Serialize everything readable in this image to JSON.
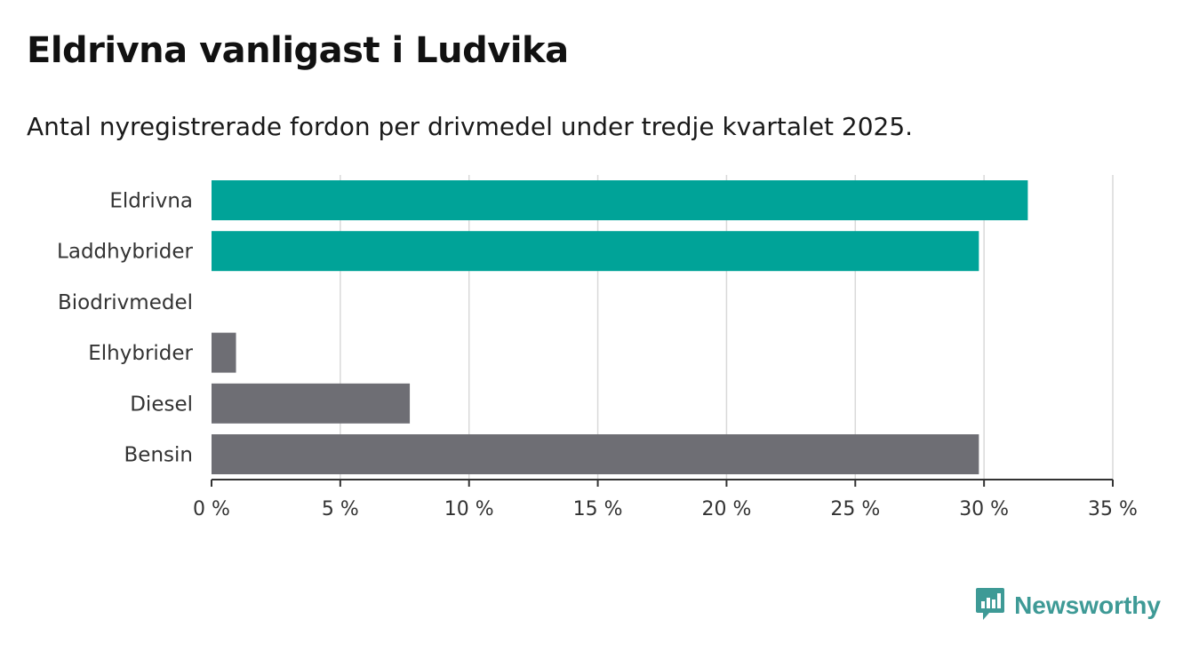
{
  "header": {
    "title": "Eldrivna vanligast i Ludvika",
    "subtitle": "Antal nyregistrerade fordon per drivmedel under tredje kvartalet 2025."
  },
  "brand": {
    "name": "Newsworthy",
    "icon": "newsworthy-logo-icon",
    "color": "#3e9a96"
  },
  "colors": {
    "highlight": "#00a398",
    "default": "#6e6e74",
    "grid": "#d9d9d9",
    "axis": "#333333"
  },
  "chart_data": {
    "type": "bar",
    "orientation": "horizontal",
    "title": "Eldrivna vanligast i Ludvika",
    "subtitle": "Antal nyregistrerade fordon per drivmedel under tredje kvartalet 2025.",
    "categories": [
      "Eldrivna",
      "Laddhybrider",
      "Biodrivmedel",
      "Elhybrider",
      "Diesel",
      "Bensin"
    ],
    "values": [
      31.7,
      29.8,
      0,
      0.95,
      7.7,
      29.8
    ],
    "highlighted": [
      true,
      true,
      false,
      false,
      false,
      false
    ],
    "xlim": [
      0,
      35
    ],
    "xticks": [
      0,
      5,
      10,
      15,
      20,
      25,
      30,
      35
    ],
    "tick_labels": [
      "0 %",
      "5 %",
      "10 %",
      "15 %",
      "20 %",
      "25 %",
      "30 %",
      "35 %"
    ],
    "grid": true,
    "xlabel": "",
    "ylabel": ""
  }
}
